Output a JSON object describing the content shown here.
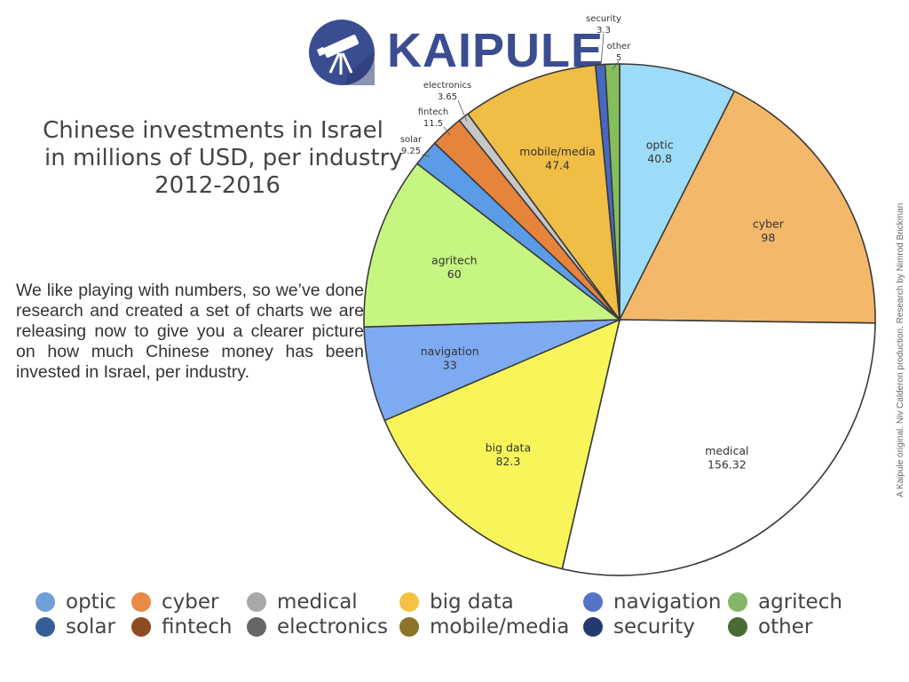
{
  "logo": {
    "text": "KAIPULE",
    "color": "#3b4d91",
    "icon": "telescope-icon"
  },
  "title_lines": [
    "Chinese investments in Israel",
    "in millions of USD, per industry",
    "2012-2016"
  ],
  "description": "We like playing with numbers, so we’ve done research and created a set of charts we are releasing now to give you a clearer picture on how much Chinese money has been invested in Israel, per industry.",
  "credit": "A Kaipule original. Niv Calderon production.  Research by Nimrod Brickman",
  "chart_data": {
    "type": "pie",
    "labels": [
      "optic",
      "cyber",
      "medical",
      "big data",
      "navigation",
      "agritech",
      "solar",
      "fintech",
      "electronics",
      "mobile/media",
      "security",
      "other"
    ],
    "values": [
      40.8,
      98,
      156.32,
      82.3,
      33,
      60,
      9.25,
      11.5,
      3.65,
      47.4,
      3.3,
      5
    ],
    "value_labels": [
      "40.8",
      "98",
      "156.32",
      "82.3",
      "33",
      "60",
      "9.25",
      "11.5",
      "3.65",
      "47.4",
      "3.3",
      "5"
    ],
    "slice_colors": [
      "#9ddcf8",
      "#f3b86a",
      "#ffffff",
      "#f7f55a",
      "#7eaaf2",
      "#c6f582",
      "#5c9be6",
      "#e7843b",
      "#c7c7c7",
      "#f0bd45",
      "#4669c2",
      "#85be5d"
    ],
    "start_angle_deg": 0,
    "direction": "clockwise"
  },
  "legend": [
    {
      "label": "optic",
      "color": "#6fa0d8"
    },
    {
      "label": "cyber",
      "color": "#e88a48"
    },
    {
      "label": "medical",
      "color": "#a8a8a8"
    },
    {
      "label": "big data",
      "color": "#f5c244"
    },
    {
      "label": "navigation",
      "color": "#5573c6"
    },
    {
      "label": "agritech",
      "color": "#83b767"
    },
    {
      "label": "solar",
      "color": "#355e96"
    },
    {
      "label": "fintech",
      "color": "#8e4a20"
    },
    {
      "label": "electronics",
      "color": "#666666"
    },
    {
      "label": "mobile/media",
      "color": "#8c7328"
    },
    {
      "label": "security",
      "color": "#233a6e"
    },
    {
      "label": "other",
      "color": "#4a6b33"
    }
  ]
}
